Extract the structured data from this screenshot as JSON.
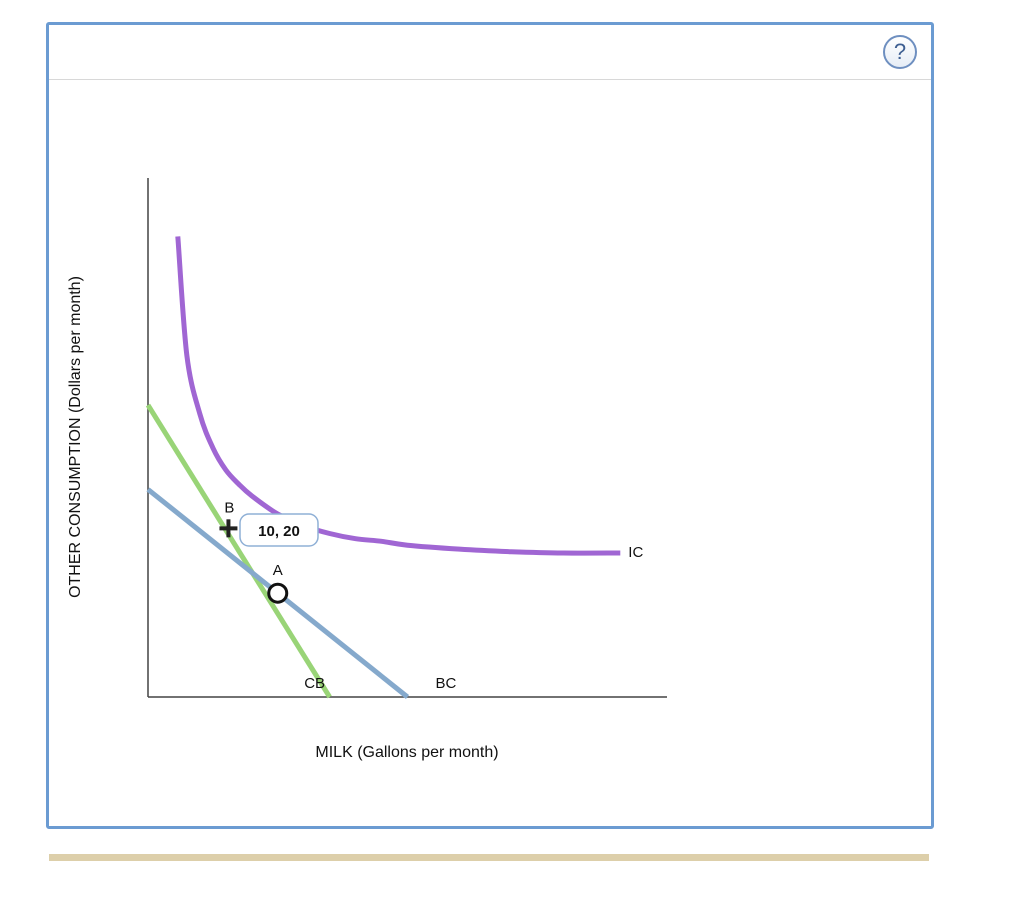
{
  "help": {
    "label": "?"
  },
  "colors": {
    "indifference_curve": "#a066d3",
    "budget_constraint": "#85a9cc",
    "compensated_budget": "#99d477",
    "panel_border": "#6b9bd2",
    "footer_bar": "#ddcfaa"
  },
  "chart_data": {
    "type": "line",
    "xlabel": "MILK (Gallons per month)",
    "ylabel": "OTHER CONSUMPTION (Dollars per month)",
    "xlim": [
      0,
      40
    ],
    "ylim": [
      0,
      40
    ],
    "ticks_shown": false,
    "grid": false,
    "series": [
      {
        "name": "IC",
        "kind": "indifference-curve",
        "color": "#a066d3",
        "x": [
          2.3,
          3,
          4,
          5,
          6,
          7,
          8,
          10,
          12,
          14,
          16,
          18,
          20,
          24,
          28,
          32,
          36.4
        ],
        "y": [
          35.5,
          26.3,
          21.8,
          19.2,
          17.5,
          16.4,
          15.5,
          14.1,
          13.2,
          12.6,
          12.2,
          12.0,
          11.7,
          11.4,
          11.2,
          11.1,
          11.1
        ]
      },
      {
        "name": "BC",
        "kind": "budget-constraint",
        "color": "#85a9cc",
        "x": [
          0,
          20
        ],
        "y": [
          16,
          0
        ]
      },
      {
        "name": "CB",
        "kind": "compensated-budget",
        "color": "#99d477",
        "x": [
          0,
          14
        ],
        "y": [
          22.5,
          0
        ]
      }
    ],
    "points": [
      {
        "label": "A",
        "x": 10,
        "y": 8,
        "marker": "open-circle"
      },
      {
        "label": "B",
        "x": 6.2,
        "y": 13,
        "marker": "plus"
      }
    ],
    "tooltip": {
      "text": "10, 20"
    }
  }
}
